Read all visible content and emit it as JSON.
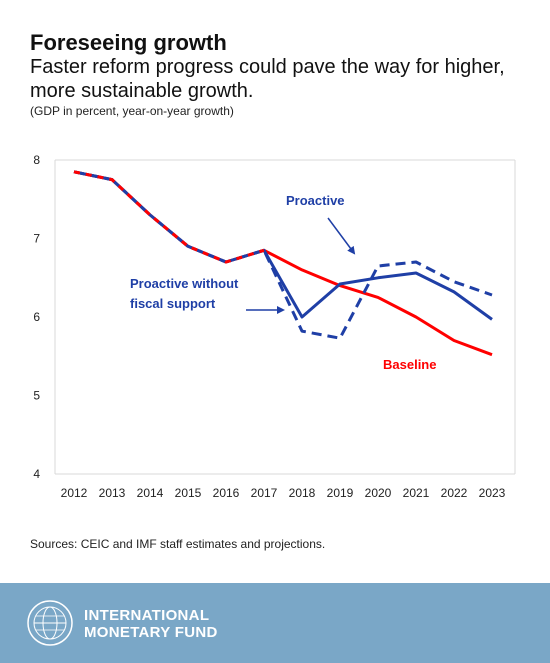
{
  "header": {
    "title": "Foreseeing growth",
    "subtitle": "Faster reform progress could pave the way for higher, more sustainable growth.",
    "note": "(GDP in percent, year-on-year growth)"
  },
  "footer": {
    "sources": "Sources: CEIC and IMF staff estimates and projections.",
    "org_line1": "INTERNATIONAL",
    "org_line2": "MONETARY FUND"
  },
  "colors": {
    "baseline": "#ff0000",
    "proactive": "#1f3fa6",
    "footer_bg": "#7aa7c7"
  },
  "chart_data": {
    "type": "line",
    "x": [
      2012,
      2013,
      2014,
      2015,
      2016,
      2017,
      2018,
      2019,
      2020,
      2021,
      2022,
      2023
    ],
    "ylim": [
      4,
      8
    ],
    "yticks": [
      4,
      5,
      6,
      7,
      8
    ],
    "grid": false,
    "legend": "none",
    "series": [
      {
        "name": "Baseline",
        "style": "solid",
        "color": "#ff0000",
        "values": [
          7.85,
          7.75,
          7.3,
          6.9,
          6.7,
          6.85,
          6.6,
          6.4,
          6.25,
          6.0,
          5.7,
          5.52
        ]
      },
      {
        "name": "Proactive",
        "style": "solid",
        "color": "#1f3fa6",
        "values": [
          7.85,
          7.75,
          7.3,
          6.9,
          6.7,
          6.85,
          6.0,
          6.42,
          6.5,
          6.56,
          6.32,
          5.97
        ]
      },
      {
        "name": "Proactive without fiscal support",
        "style": "dashed",
        "color": "#1f3fa6",
        "values": [
          7.85,
          7.75,
          7.3,
          6.9,
          6.7,
          6.85,
          5.82,
          5.73,
          6.65,
          6.7,
          6.45,
          6.28
        ]
      }
    ],
    "annotations": [
      {
        "text": "Proactive",
        "color": "#1f3fa6"
      },
      {
        "text_lines": [
          "Proactive without",
          "fiscal support"
        ],
        "color": "#1f3fa6"
      },
      {
        "text": "Baseline",
        "color": "#ff0000"
      }
    ]
  }
}
